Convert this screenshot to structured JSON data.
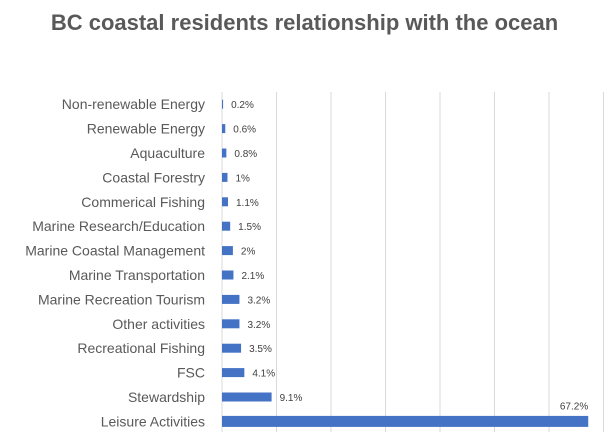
{
  "chart_data": {
    "type": "bar",
    "orientation": "horizontal",
    "title": "BC coastal residents relationship with the ocean",
    "categories": [
      "Non-renewable Energy",
      "Renewable Energy",
      "Aquaculture",
      "Coastal Forestry",
      "Commerical Fishing",
      "Marine Research/Education",
      "Marine Coastal Management",
      "Marine Transportation",
      "Marine Recreation Tourism",
      "Other activities",
      "Recreational Fishing",
      "FSC",
      "Stewardship",
      "Leisure Activities"
    ],
    "values": [
      0.2,
      0.6,
      0.8,
      1,
      1.1,
      1.5,
      2,
      2.1,
      3.2,
      3.2,
      3.5,
      4.1,
      9.1,
      67.2
    ],
    "data_labels": [
      "0.2%",
      "0.6%",
      "0.8%",
      "1%",
      "1.1%",
      "1.5%",
      "2%",
      "2.1%",
      "3.2%",
      "3.2%",
      "3.5%",
      "4.1%",
      "9.1%",
      "67.2%"
    ],
    "xlim": [
      0,
      70
    ],
    "grid": "vertical every 10",
    "tick_labels_shown": false,
    "bar_color": "#4472C4",
    "legend": "none"
  }
}
